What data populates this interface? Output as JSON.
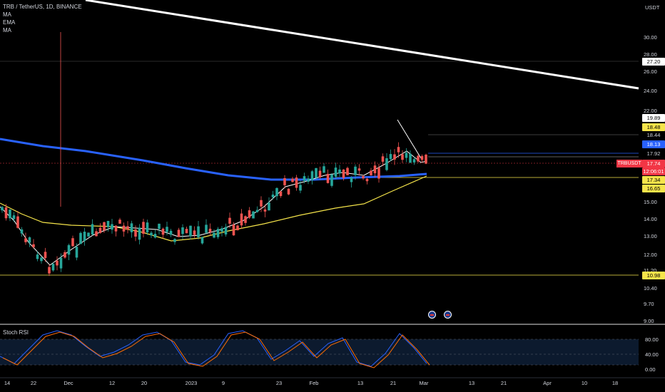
{
  "header": {
    "symbol_line": "TRB / TetherUS, 1D, BINANCE",
    "indicators": [
      "MA",
      "EMA",
      "MA"
    ],
    "currency": "USDT"
  },
  "price_axis": {
    "ticks": [
      "30.00",
      "28.00",
      "26.00",
      "24.00",
      "22.00",
      "15.00",
      "14.00",
      "13.00",
      "12.00",
      "11.20",
      "10.40",
      "9.70",
      "9.00"
    ],
    "tags": [
      {
        "text": "27.20",
        "bg": "#ffffff",
        "fg": "#000000"
      },
      {
        "text": "19.89",
        "bg": "#ffffff",
        "fg": "#000000"
      },
      {
        "text": "18.48",
        "bg": "#f5e44a",
        "fg": "#000000"
      },
      {
        "text": "18.44",
        "bg": "#000000",
        "fg": "#d1d4dc"
      },
      {
        "text": "18.13",
        "bg": "#2962ff",
        "fg": "#ffffff"
      },
      {
        "text": "17.92",
        "bg": "#000000",
        "fg": "#d1d4dc"
      },
      {
        "text": "17.74",
        "bg": "#f23645",
        "fg": "#ffffff"
      },
      {
        "text": "12:06:01",
        "bg": "#f23645",
        "fg": "#ffffff"
      },
      {
        "text": "17.34",
        "bg": "#f5e44a",
        "fg": "#000000"
      },
      {
        "text": "16.65",
        "bg": "#f5e44a",
        "fg": "#000000"
      },
      {
        "text": "10.98",
        "bg": "#f5e44a",
        "fg": "#000000"
      }
    ],
    "symbol_tag": "TRBUSDT"
  },
  "time_axis": {
    "labels": [
      "14",
      "22",
      "Dec",
      "12",
      "20",
      "2023",
      "9",
      "23",
      "Feb",
      "13",
      "21",
      "Mar",
      "13",
      "21",
      "Apr",
      "10",
      "18"
    ]
  },
  "rsi": {
    "title": "Stoch RSI",
    "ticks": [
      "80.00",
      "40.00",
      "0.00"
    ]
  },
  "colors": {
    "up": "#26a69a",
    "down": "#ef5350",
    "ma200": "#2962ff",
    "ema": "#f5e44a",
    "ma_short": "#ffffff",
    "rsi_k": "#2962ff",
    "rsi_d": "#ff6d00"
  },
  "chart_data": {
    "type": "candlestick",
    "symbol": "TRB / TetherUS",
    "interval": "1D",
    "last_price": 17.74,
    "levels": [
      27.2,
      19.89,
      18.48,
      18.44,
      18.13,
      17.92,
      17.34,
      16.65,
      10.98
    ],
    "stoch_rsi_range": [
      0,
      100
    ]
  }
}
